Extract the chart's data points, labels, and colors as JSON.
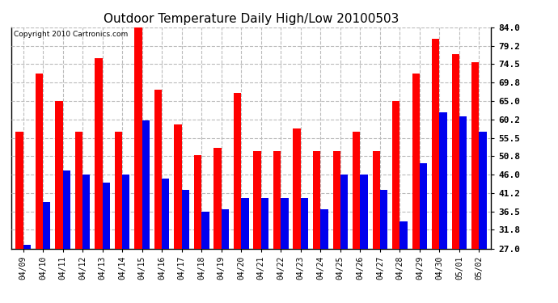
{
  "title": "Outdoor Temperature Daily High/Low 20100503",
  "copyright": "Copyright 2010 Cartronics.com",
  "categories": [
    "04/09",
    "04/10",
    "04/11",
    "04/12",
    "04/13",
    "04/14",
    "04/15",
    "04/16",
    "04/17",
    "04/18",
    "04/19",
    "04/20",
    "04/21",
    "04/22",
    "04/23",
    "04/24",
    "04/25",
    "04/26",
    "04/27",
    "04/28",
    "04/29",
    "04/30",
    "05/01",
    "05/02"
  ],
  "high_values": [
    57.0,
    72.0,
    65.0,
    57.0,
    76.0,
    57.0,
    84.0,
    68.0,
    59.0,
    51.0,
    53.0,
    67.0,
    52.0,
    52.0,
    58.0,
    52.0,
    52.0,
    57.0,
    52.0,
    65.0,
    72.0,
    81.0,
    77.0,
    75.0
  ],
  "low_values": [
    28.0,
    39.0,
    47.0,
    46.0,
    44.0,
    46.0,
    60.0,
    45.0,
    42.0,
    36.5,
    37.0,
    40.0,
    40.0,
    40.0,
    40.0,
    37.0,
    46.0,
    46.0,
    42.0,
    34.0,
    49.0,
    62.0,
    61.0,
    57.0
  ],
  "high_color": "#ff0000",
  "low_color": "#0000ee",
  "bg_color": "#ffffff",
  "ytick_values": [
    27.0,
    31.8,
    36.5,
    41.2,
    46.0,
    50.8,
    55.5,
    60.2,
    65.0,
    69.8,
    74.5,
    79.2,
    84.0
  ],
  "ytick_labels": [
    "27.0",
    "31.8",
    "36.5",
    "41.2",
    "46.0",
    "50.8",
    "55.5",
    "60.2",
    "65.0",
    "69.8",
    "74.5",
    "79.2",
    "84.0"
  ],
  "ymin": 27.0,
  "ymax": 84.0,
  "bar_width": 0.38,
  "title_fontsize": 11,
  "copyright_fontsize": 6.5,
  "xtick_fontsize": 7,
  "ytick_fontsize": 8,
  "grid_color": "#bbbbbb",
  "grid_linestyle": "--"
}
